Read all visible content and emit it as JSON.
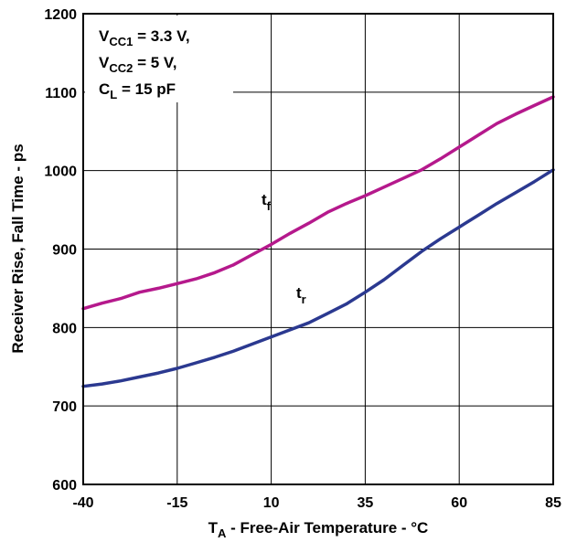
{
  "chart_data": {
    "type": "line",
    "xlabel": {
      "main": "T",
      "sub": "A",
      "rest": " - Free-Air Temperature - °C"
    },
    "ylabel": "Receiver Rise, Fall Time - ps",
    "xlim": [
      -40,
      85
    ],
    "ylim": [
      600,
      1200
    ],
    "x_ticks": [
      -40,
      -15,
      10,
      35,
      60,
      85
    ],
    "y_ticks": [
      600,
      700,
      800,
      900,
      1000,
      1100,
      1200
    ],
    "x_tick_labels": [
      "-40",
      "-15",
      "10",
      "35",
      "60",
      "85"
    ],
    "y_tick_labels": [
      "600",
      "700",
      "800",
      "900",
      "1000",
      "1100",
      "1200"
    ],
    "grid": true,
    "conditions": [
      {
        "main": "V",
        "sub": "CC1",
        "rest": " = 3.3 V,"
      },
      {
        "main": "V",
        "sub": "CC2",
        "rest": " = 5 V,"
      },
      {
        "main": "C",
        "sub": "L",
        "rest": " = 15 pF"
      }
    ],
    "series": [
      {
        "name": "tf",
        "label_main": "t",
        "label_sub": "f",
        "color": "#b5198c",
        "x": [
          -40,
          -35,
          -30,
          -25,
          -20,
          -15,
          -10,
          -5,
          0,
          5,
          10,
          15,
          20,
          25,
          30,
          35,
          40,
          45,
          50,
          55,
          60,
          65,
          70,
          75,
          80,
          85
        ],
        "y": [
          824,
          831,
          837,
          845,
          850,
          856,
          862,
          870,
          880,
          893,
          906,
          920,
          933,
          947,
          958,
          968,
          979,
          990,
          1001,
          1015,
          1030,
          1045,
          1060,
          1072,
          1083,
          1094
        ]
      },
      {
        "name": "tr",
        "label_main": "t",
        "label_sub": "r",
        "color": "#2b3990",
        "x": [
          -40,
          -35,
          -30,
          -25,
          -20,
          -15,
          -10,
          -5,
          0,
          5,
          10,
          15,
          20,
          25,
          30,
          35,
          40,
          45,
          50,
          55,
          60,
          65,
          70,
          75,
          80,
          85
        ],
        "y": [
          725,
          728,
          732,
          737,
          742,
          748,
          755,
          762,
          770,
          779,
          788,
          797,
          806,
          818,
          830,
          845,
          861,
          879,
          897,
          913,
          928,
          943,
          958,
          972,
          986,
          1001
        ]
      }
    ]
  }
}
